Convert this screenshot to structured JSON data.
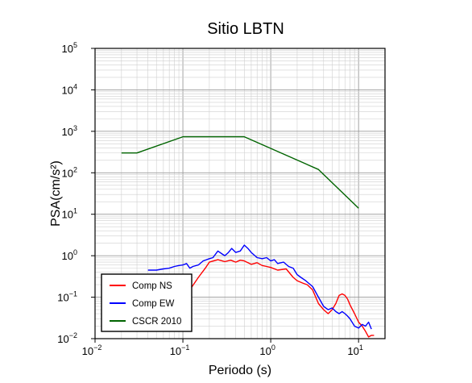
{
  "chart_data": {
    "type": "line",
    "title": "Sitio LBTN",
    "xlabel": "Periodo (s)",
    "ylabel": "PSA(cm/s²)",
    "x_scale": "log",
    "y_scale": "log",
    "xlim": [
      0.01,
      20
    ],
    "ylim": [
      0.01,
      100000
    ],
    "grid": true,
    "legend_position": "bottom-left",
    "x_ticks": [
      {
        "base": "10",
        "exp": "−2"
      },
      {
        "base": "10",
        "exp": "−1"
      },
      {
        "base": "10",
        "exp": "0"
      },
      {
        "base": "10",
        "exp": "1"
      }
    ],
    "y_ticks": [
      {
        "base": "10",
        "exp": "−2"
      },
      {
        "base": "10",
        "exp": "−1"
      },
      {
        "base": "10",
        "exp": "0"
      },
      {
        "base": "10",
        "exp": "1"
      },
      {
        "base": "10",
        "exp": "2"
      },
      {
        "base": "10",
        "exp": "3"
      },
      {
        "base": "10",
        "exp": "4"
      },
      {
        "base": "10",
        "exp": "5"
      }
    ],
    "series": [
      {
        "name": "Comp NS",
        "color": "#ff0000",
        "x": [
          0.1,
          0.12,
          0.15,
          0.18,
          0.2,
          0.25,
          0.3,
          0.35,
          0.4,
          0.45,
          0.5,
          0.6,
          0.7,
          0.8,
          0.9,
          1.0,
          1.2,
          1.5,
          1.8,
          2.0,
          2.3,
          2.6,
          3.0,
          3.5,
          4.0,
          4.5,
          5.0,
          5.5,
          6.0,
          6.5,
          7.0,
          7.5,
          8.0,
          9.0,
          10.0,
          11.0,
          12.0,
          13.0,
          14.0,
          15.0
        ],
        "y": [
          0.05,
          0.15,
          0.3,
          0.5,
          0.7,
          0.8,
          0.72,
          0.78,
          0.7,
          0.78,
          0.75,
          0.62,
          0.68,
          0.58,
          0.55,
          0.52,
          0.45,
          0.48,
          0.3,
          0.25,
          0.22,
          0.2,
          0.15,
          0.07,
          0.05,
          0.04,
          0.05,
          0.07,
          0.11,
          0.12,
          0.11,
          0.09,
          0.065,
          0.04,
          0.025,
          0.02,
          0.015,
          0.011,
          0.012,
          0.012
        ]
      },
      {
        "name": "Comp EW",
        "color": "#0000ff",
        "x": [
          0.04,
          0.05,
          0.06,
          0.07,
          0.08,
          0.09,
          0.1,
          0.11,
          0.12,
          0.13,
          0.15,
          0.17,
          0.2,
          0.22,
          0.25,
          0.28,
          0.3,
          0.33,
          0.36,
          0.4,
          0.45,
          0.5,
          0.55,
          0.6,
          0.7,
          0.8,
          0.9,
          1.0,
          1.1,
          1.2,
          1.4,
          1.6,
          1.8,
          2.0,
          2.2,
          2.5,
          3.0,
          3.5,
          4.0,
          4.5,
          5.0,
          5.5,
          6.0,
          6.5,
          7.0,
          7.5,
          8.0,
          9.0,
          10.0,
          11.0,
          12.0,
          13.0,
          14.0
        ],
        "y": [
          0.45,
          0.45,
          0.48,
          0.5,
          0.55,
          0.58,
          0.6,
          0.65,
          0.5,
          0.55,
          0.6,
          0.75,
          0.85,
          0.9,
          1.3,
          1.1,
          1.0,
          1.2,
          1.5,
          1.2,
          1.3,
          1.8,
          1.5,
          1.2,
          0.9,
          0.85,
          0.9,
          0.75,
          0.8,
          0.65,
          0.7,
          0.55,
          0.5,
          0.35,
          0.3,
          0.25,
          0.18,
          0.1,
          0.06,
          0.05,
          0.055,
          0.045,
          0.04,
          0.045,
          0.04,
          0.035,
          0.03,
          0.02,
          0.018,
          0.022,
          0.02,
          0.025,
          0.017
        ]
      },
      {
        "name": "CSCR 2010",
        "color": "#006400",
        "x": [
          0.02,
          0.03,
          0.1,
          0.5,
          3.5,
          10.0
        ],
        "y": [
          300,
          300,
          740,
          740,
          120,
          14
        ]
      }
    ]
  }
}
